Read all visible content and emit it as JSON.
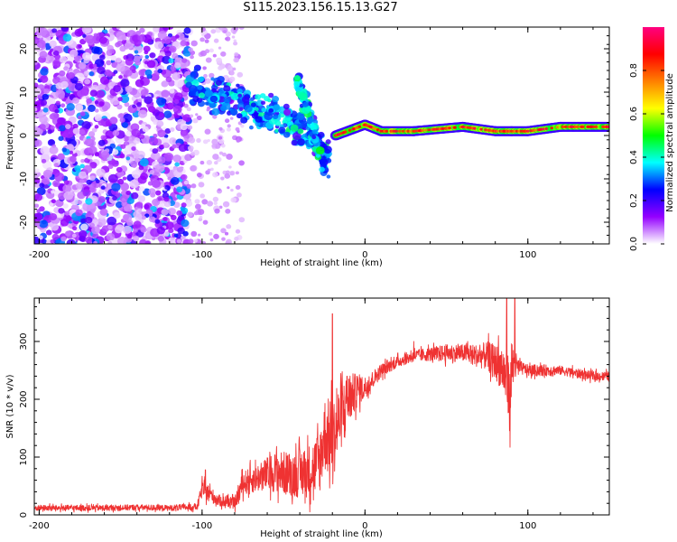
{
  "title": "S115.2023.156.15.13.G27",
  "chart_data": [
    {
      "type": "heatmap",
      "ylabel": "Frequency (Hz)",
      "xlabel": "Height of straight line (km)",
      "xlim": [
        -203,
        150
      ],
      "ylim": [
        -25,
        25
      ],
      "xticks": [
        -200,
        -100,
        0,
        100
      ],
      "xtick_labels": [
        "-200",
        "-100",
        "0",
        "100"
      ],
      "yticks": [
        20,
        10,
        0,
        -10,
        -20
      ],
      "ytick_labels": [
        "20",
        "10",
        "0",
        "-10",
        "-20"
      ],
      "colorbar": {
        "label": "Normalized spectral amplitude",
        "range": [
          0,
          1
        ],
        "ticks": [
          0.0,
          0.2,
          0.4,
          0.6,
          0.8
        ],
        "tick_labels": [
          "0.0",
          "0.2",
          "0.4",
          "0.6",
          "0.8"
        ],
        "colors": [
          "#ffffff",
          "#9400ff",
          "#0000ff",
          "#00ffff",
          "#00ff00",
          "#ffff00",
          "#ff8000",
          "#ff0000",
          "#ff0080"
        ]
      },
      "features": [
        {
          "name": "noise-scatter",
          "x_range": [
            -203,
            -108
          ],
          "f_range": [
            -25,
            25
          ],
          "level": 0.15
        },
        {
          "name": "sparse-scatter",
          "x_range": [
            -108,
            -75
          ],
          "f_range": [
            -25,
            25
          ],
          "level": 0.05
        },
        {
          "name": "descending-streak",
          "x": [
            -108,
            -80,
            -55,
            -35,
            -22
          ],
          "f": [
            11,
            8,
            5,
            1,
            -6
          ],
          "level": 0.3
        },
        {
          "name": "secondary-streak",
          "x": [
            -42,
            -35,
            -28
          ],
          "f": [
            13,
            6,
            -5
          ],
          "level": 0.35
        },
        {
          "name": "carrier-line",
          "x": [
            -18,
            0,
            10,
            30,
            60,
            80,
            90,
            100,
            120,
            150
          ],
          "f": [
            0,
            2.5,
            1,
            1,
            2,
            1,
            1,
            1,
            2,
            2
          ],
          "level": 0.85
        }
      ]
    },
    {
      "type": "line",
      "ylabel": "SNR (10 * v/v)",
      "xlabel": "Height of straight line (km)",
      "xlim": [
        -203,
        150
      ],
      "ylim": [
        0,
        375
      ],
      "xticks": [
        -200,
        -100,
        0,
        100
      ],
      "xtick_labels": [
        "-200",
        "-100",
        "0",
        "100"
      ],
      "yticks": [
        0,
        100,
        200,
        300
      ],
      "ytick_labels": [
        "0",
        "100",
        "200",
        "300"
      ],
      "color": "#ef3232",
      "series": [
        {
          "name": "SNR",
          "x": [
            -203,
            -180,
            -160,
            -140,
            -120,
            -103,
            -100,
            -97,
            -90,
            -80,
            -75,
            -65,
            -55,
            -45,
            -35,
            -28,
            -25,
            -20,
            -15,
            -10,
            -5,
            0,
            5,
            10,
            20,
            30,
            40,
            50,
            60,
            70,
            75,
            80,
            85,
            88,
            90,
            92,
            95,
            100,
            110,
            120,
            130,
            140,
            150
          ],
          "y": [
            12,
            12,
            12,
            13,
            12,
            14,
            45,
            40,
            25,
            20,
            55,
            65,
            75,
            70,
            75,
            90,
            140,
            130,
            170,
            200,
            215,
            220,
            235,
            250,
            265,
            275,
            278,
            280,
            280,
            275,
            275,
            265,
            250,
            215,
            255,
            255,
            255,
            250,
            250,
            250,
            245,
            240,
            240
          ],
          "noise": [
            5,
            5,
            5,
            5,
            5,
            6,
            15,
            15,
            10,
            10,
            20,
            25,
            35,
            40,
            45,
            55,
            65,
            70,
            60,
            45,
            30,
            20,
            15,
            12,
            10,
            10,
            12,
            15,
            15,
            20,
            25,
            30,
            40,
            60,
            55,
            30,
            12,
            10,
            10,
            8,
            8,
            8,
            8
          ],
          "peaks": [
            [
              -98,
              78
            ],
            [
              -20,
              348
            ],
            [
              -11,
              240
            ],
            [
              -5,
              240
            ],
            [
              -2,
              230
            ],
            [
              30,
              300
            ],
            [
              63,
              300
            ],
            [
              82,
              310
            ],
            [
              87,
              375
            ],
            [
              92,
              375
            ],
            [
              89,
              117
            ]
          ]
        }
      ]
    }
  ]
}
